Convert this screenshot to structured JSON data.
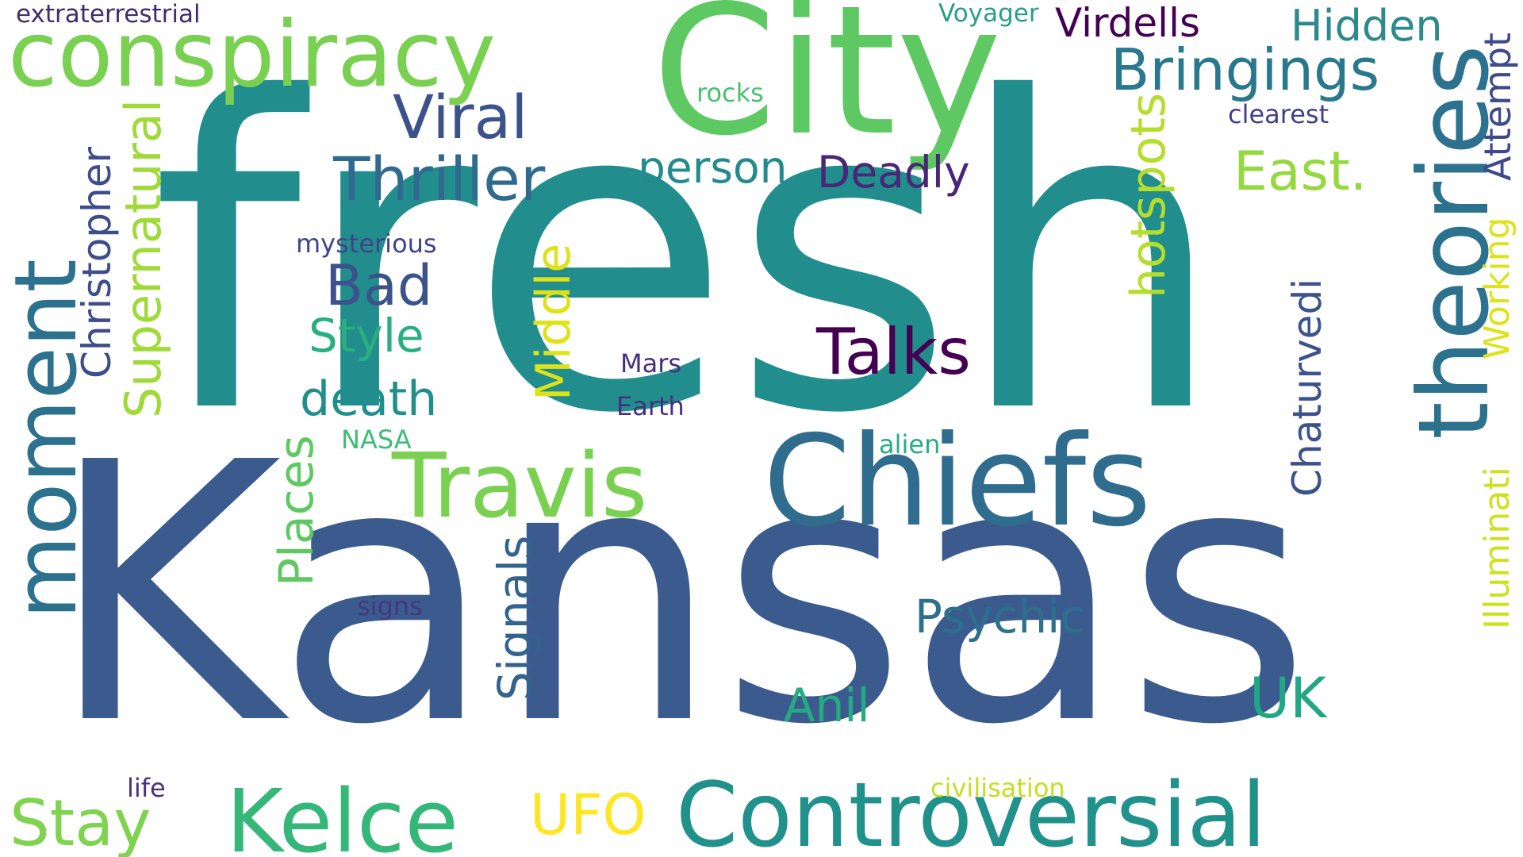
{
  "words": [
    {
      "text": "fresh",
      "color": "#218e8d",
      "rotated": false
    },
    {
      "text": "Kansas",
      "color": "#3b5b8e",
      "rotated": false
    },
    {
      "text": "City",
      "color": "#5ec962",
      "rotated": false
    },
    {
      "text": "conspiracy",
      "color": "#7ad151",
      "rotated": false
    },
    {
      "text": "theories",
      "color": "#2c728e",
      "rotated": true
    },
    {
      "text": "Chiefs",
      "color": "#2f6c8e",
      "rotated": false
    },
    {
      "text": "Travis",
      "color": "#7ad151",
      "rotated": false
    },
    {
      "text": "Controversial",
      "color": "#21918c",
      "rotated": false
    },
    {
      "text": "Kelce",
      "color": "#35b779",
      "rotated": false
    },
    {
      "text": "moment",
      "color": "#2c728e",
      "rotated": true
    },
    {
      "text": "Bringings",
      "color": "#2a788e",
      "rotated": false
    },
    {
      "text": "Hidden",
      "color": "#2c8a8c",
      "rotated": false
    },
    {
      "text": "Virdells",
      "color": "#440154",
      "rotated": false
    },
    {
      "text": "Voyager",
      "color": "#27a085",
      "rotated": false
    },
    {
      "text": "extraterrestrial",
      "color": "#3e2e6c",
      "rotated": false
    },
    {
      "text": "Viral",
      "color": "#3b528b",
      "rotated": false
    },
    {
      "text": "Thriller",
      "color": "#306a8e",
      "rotated": false
    },
    {
      "text": "person",
      "color": "#238a8d",
      "rotated": false
    },
    {
      "text": "Deadly",
      "color": "#482777",
      "rotated": false
    },
    {
      "text": "East.",
      "color": "#95d840",
      "rotated": false
    },
    {
      "text": "rocks",
      "color": "#4ac16d",
      "rotated": false
    },
    {
      "text": "clearest",
      "color": "#424086",
      "rotated": false
    },
    {
      "text": "Attempt",
      "color": "#3e4a89",
      "rotated": true
    },
    {
      "text": "Working",
      "color": "#dde318",
      "rotated": true
    },
    {
      "text": "Illuminati",
      "color": "#cde11d",
      "rotated": true
    },
    {
      "text": "hotspots",
      "color": "#b5de2b",
      "rotated": true
    },
    {
      "text": "Chaturvedi",
      "color": "#3b528b",
      "rotated": true
    },
    {
      "text": "Supernatural",
      "color": "#a0da39",
      "rotated": true
    },
    {
      "text": "Christopher",
      "color": "#3d4d8a",
      "rotated": true
    },
    {
      "text": "Middle",
      "color": "#dde318",
      "rotated": true
    },
    {
      "text": "Places",
      "color": "#5ec962",
      "rotated": true
    },
    {
      "text": "Signals",
      "color": "#33638d",
      "rotated": true
    },
    {
      "text": "mysterious",
      "color": "#414487",
      "rotated": false
    },
    {
      "text": "Bad",
      "color": "#3b528b",
      "rotated": false
    },
    {
      "text": "Style",
      "color": "#29af7f",
      "rotated": false
    },
    {
      "text": "death",
      "color": "#208f8c",
      "rotated": false
    },
    {
      "text": "Talks",
      "color": "#440154",
      "rotated": false
    },
    {
      "text": "Mars",
      "color": "#46307e",
      "rotated": false
    },
    {
      "text": "Earth",
      "color": "#46307e",
      "rotated": false
    },
    {
      "text": "NASA",
      "color": "#3dbc74",
      "rotated": false
    },
    {
      "text": "alien",
      "color": "#27ad81",
      "rotated": false
    },
    {
      "text": "Psychic",
      "color": "#2d708e",
      "rotated": false
    },
    {
      "text": "Anil",
      "color": "#25ab82",
      "rotated": false
    },
    {
      "text": "UK",
      "color": "#22a785",
      "rotated": false
    },
    {
      "text": "signs",
      "color": "#453781",
      "rotated": false
    },
    {
      "text": "life",
      "color": "#46327e",
      "rotated": false
    },
    {
      "text": "Stay",
      "color": "#7fd34e",
      "rotated": false
    },
    {
      "text": "UFO",
      "color": "#fde725",
      "rotated": false
    },
    {
      "text": "civilisation",
      "color": "#c2df23",
      "rotated": false
    }
  ]
}
